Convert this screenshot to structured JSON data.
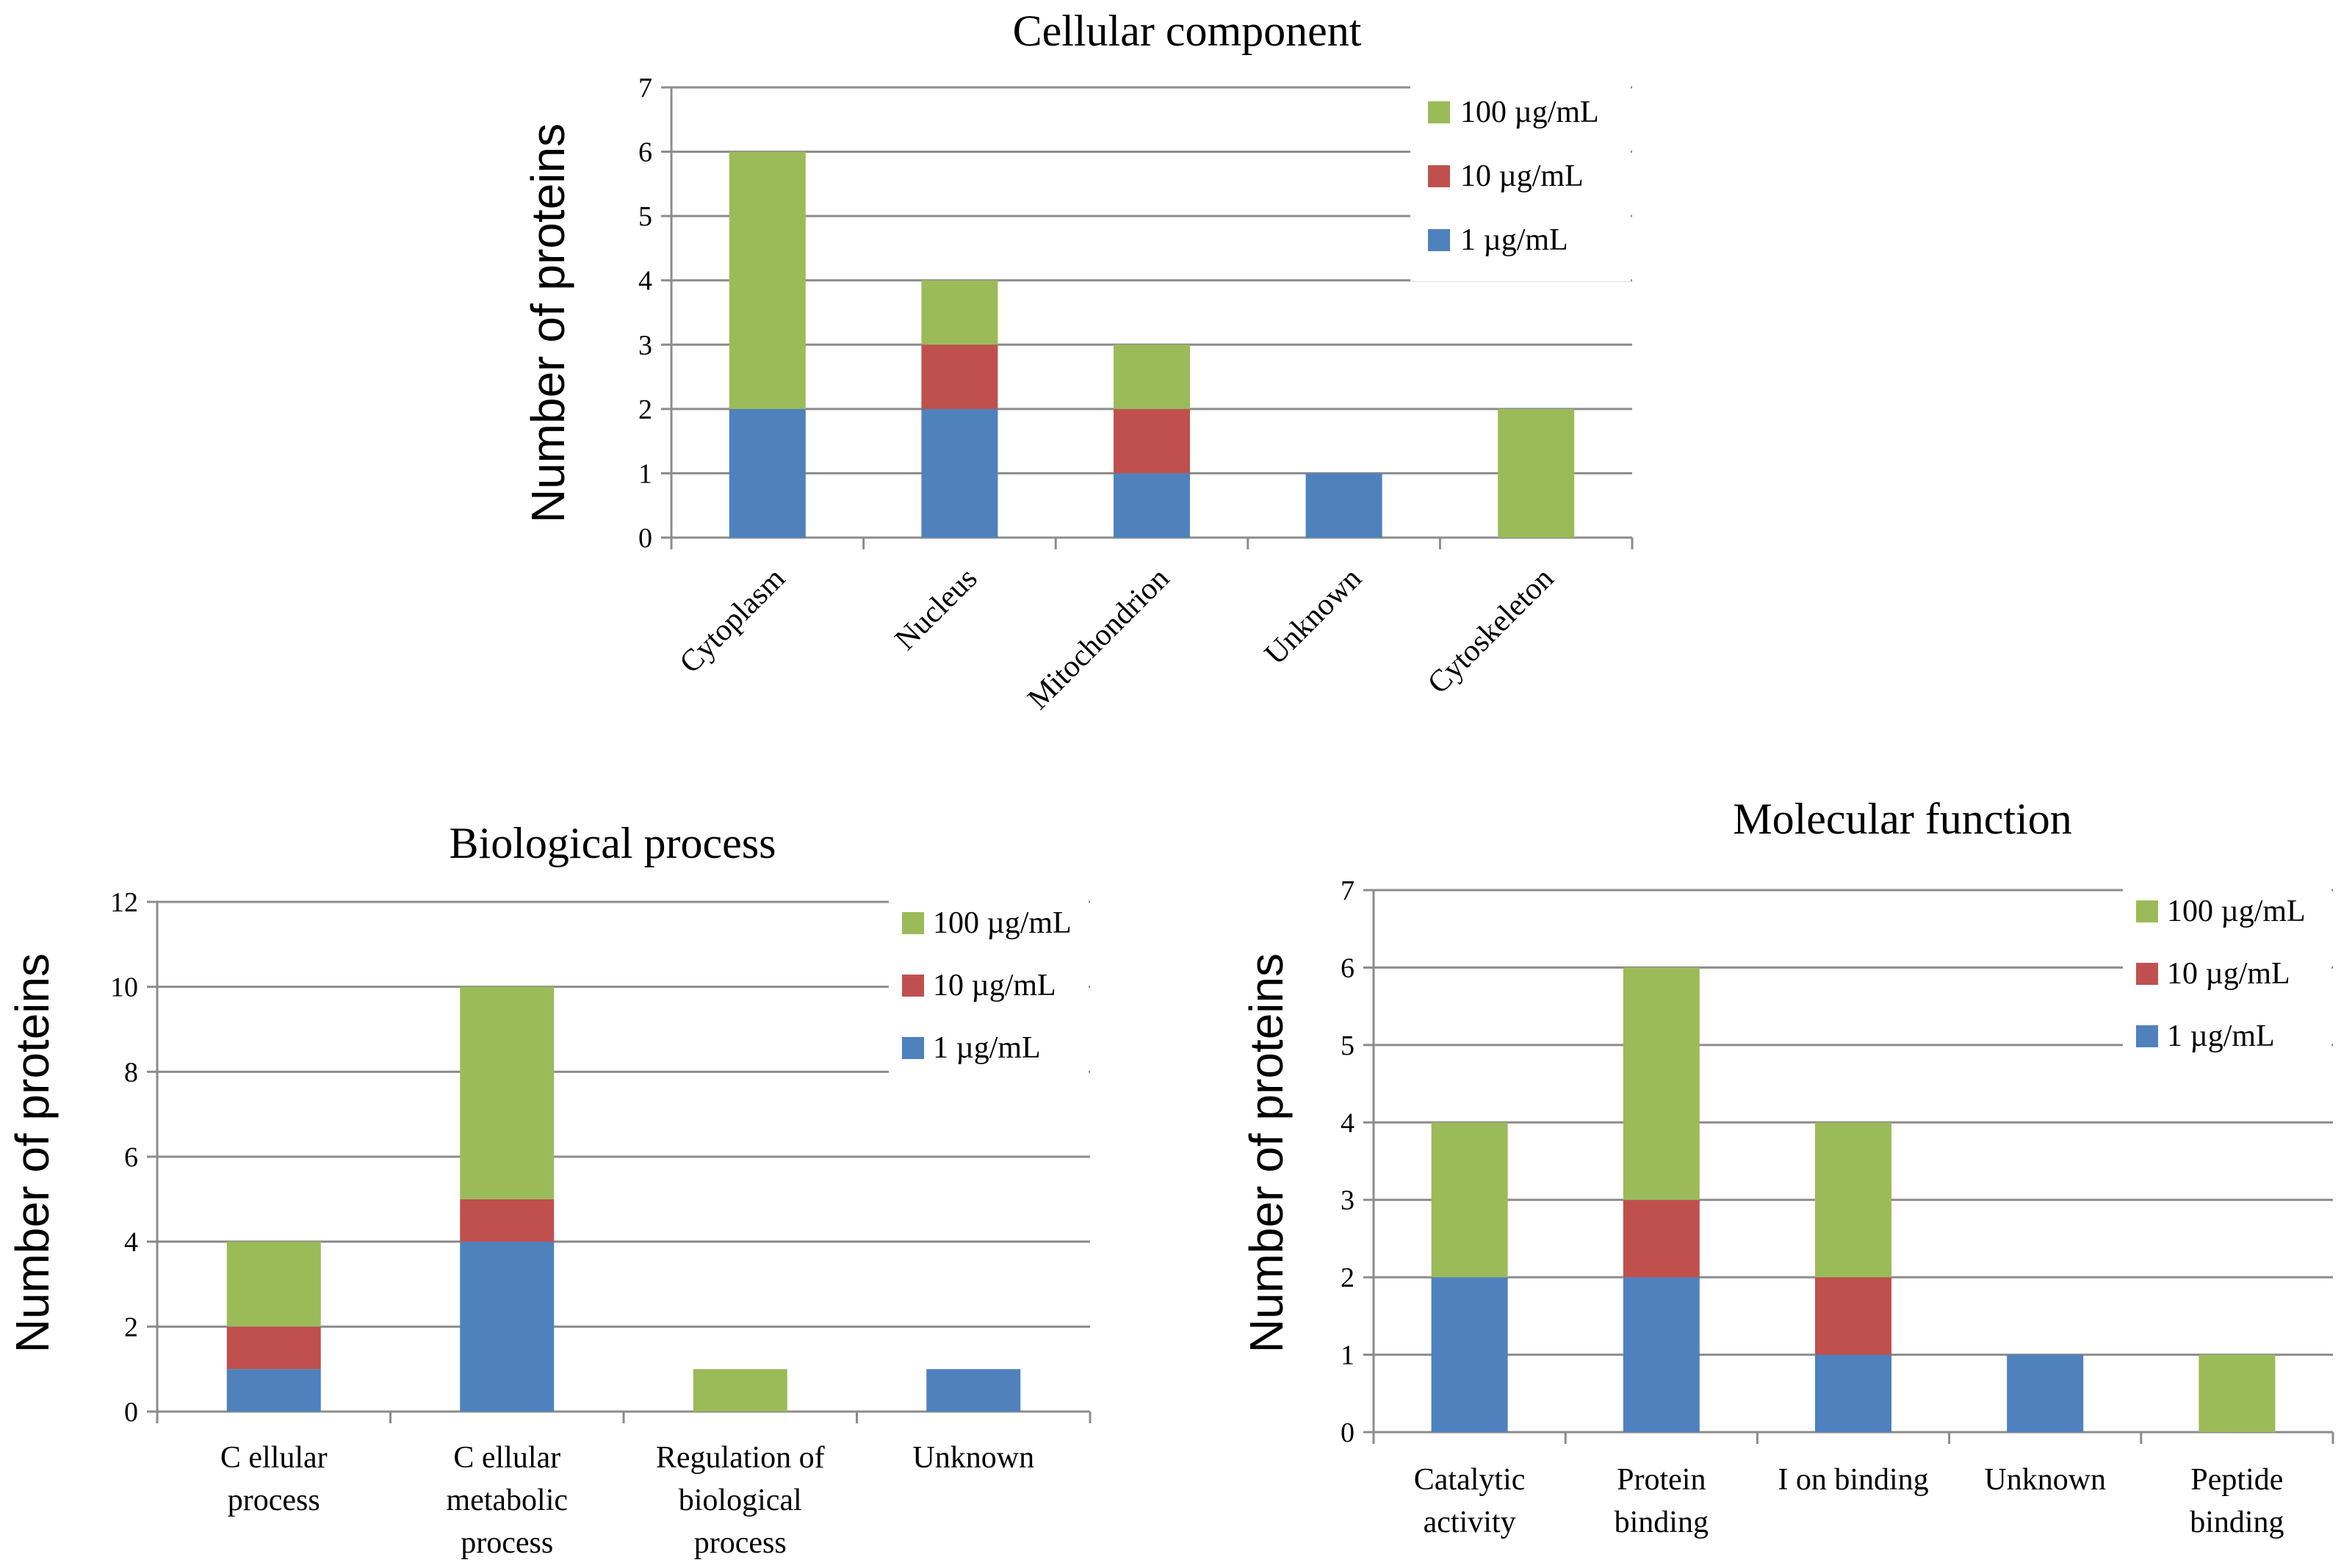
{
  "colors": {
    "s1": "#4f81bd",
    "s2": "#c0504d",
    "s3": "#9bbb59"
  },
  "chart_data": [
    {
      "type": "bar",
      "stacked": true,
      "title": "Cellular component",
      "ylabel": "Number of proteins",
      "xlabel": "",
      "ylim": [
        0,
        7
      ],
      "yticks": [
        0,
        1,
        2,
        3,
        4,
        5,
        6,
        7
      ],
      "categories": [
        "Cytoplasm",
        "Nucleus",
        "Mitochondrion",
        "Unknown",
        "Cytoskeleton"
      ],
      "series": [
        {
          "name": "1 µg/mL",
          "values": [
            2,
            2,
            1,
            1,
            0
          ]
        },
        {
          "name": "10 µg/mL",
          "values": [
            0,
            1,
            1,
            0,
            0
          ]
        },
        {
          "name": "100 µg/mL",
          "values": [
            4,
            1,
            1,
            0,
            2
          ]
        }
      ],
      "legend_position": "top-right",
      "grid": true
    },
    {
      "type": "bar",
      "stacked": true,
      "title": "Biological process",
      "ylabel": "Number of proteins",
      "xlabel": "",
      "ylim": [
        0,
        12
      ],
      "yticks": [
        0,
        2,
        4,
        6,
        8,
        10,
        12
      ],
      "categories": [
        "Cellular process",
        "Cellular metabolic process",
        "Regulation of biological process",
        "Unknown"
      ],
      "series": [
        {
          "name": "1 µg/mL",
          "values": [
            1,
            4,
            0,
            1
          ]
        },
        {
          "name": "10 µg/mL",
          "values": [
            1,
            1,
            0,
            0
          ]
        },
        {
          "name": "100 µg/mL",
          "values": [
            2,
            5,
            1,
            0
          ]
        }
      ],
      "legend_position": "top-right",
      "grid": true
    },
    {
      "type": "bar",
      "stacked": true,
      "title": "Molecular function",
      "ylabel": "Number of proteins",
      "xlabel": "",
      "ylim": [
        0,
        7
      ],
      "yticks": [
        0,
        1,
        2,
        3,
        4,
        5,
        6,
        7
      ],
      "categories": [
        "Catalytic activity",
        "Protein binding",
        "Ion binding",
        "Unknown",
        "Peptide binding"
      ],
      "series": [
        {
          "name": "1 µg/mL",
          "values": [
            2,
            2,
            1,
            1,
            0
          ]
        },
        {
          "name": "10 µg/mL",
          "values": [
            0,
            1,
            1,
            0,
            0
          ]
        },
        {
          "name": "100 µg/mL",
          "values": [
            2,
            3,
            2,
            0,
            1
          ]
        }
      ],
      "legend_position": "top-right",
      "grid": true
    }
  ]
}
